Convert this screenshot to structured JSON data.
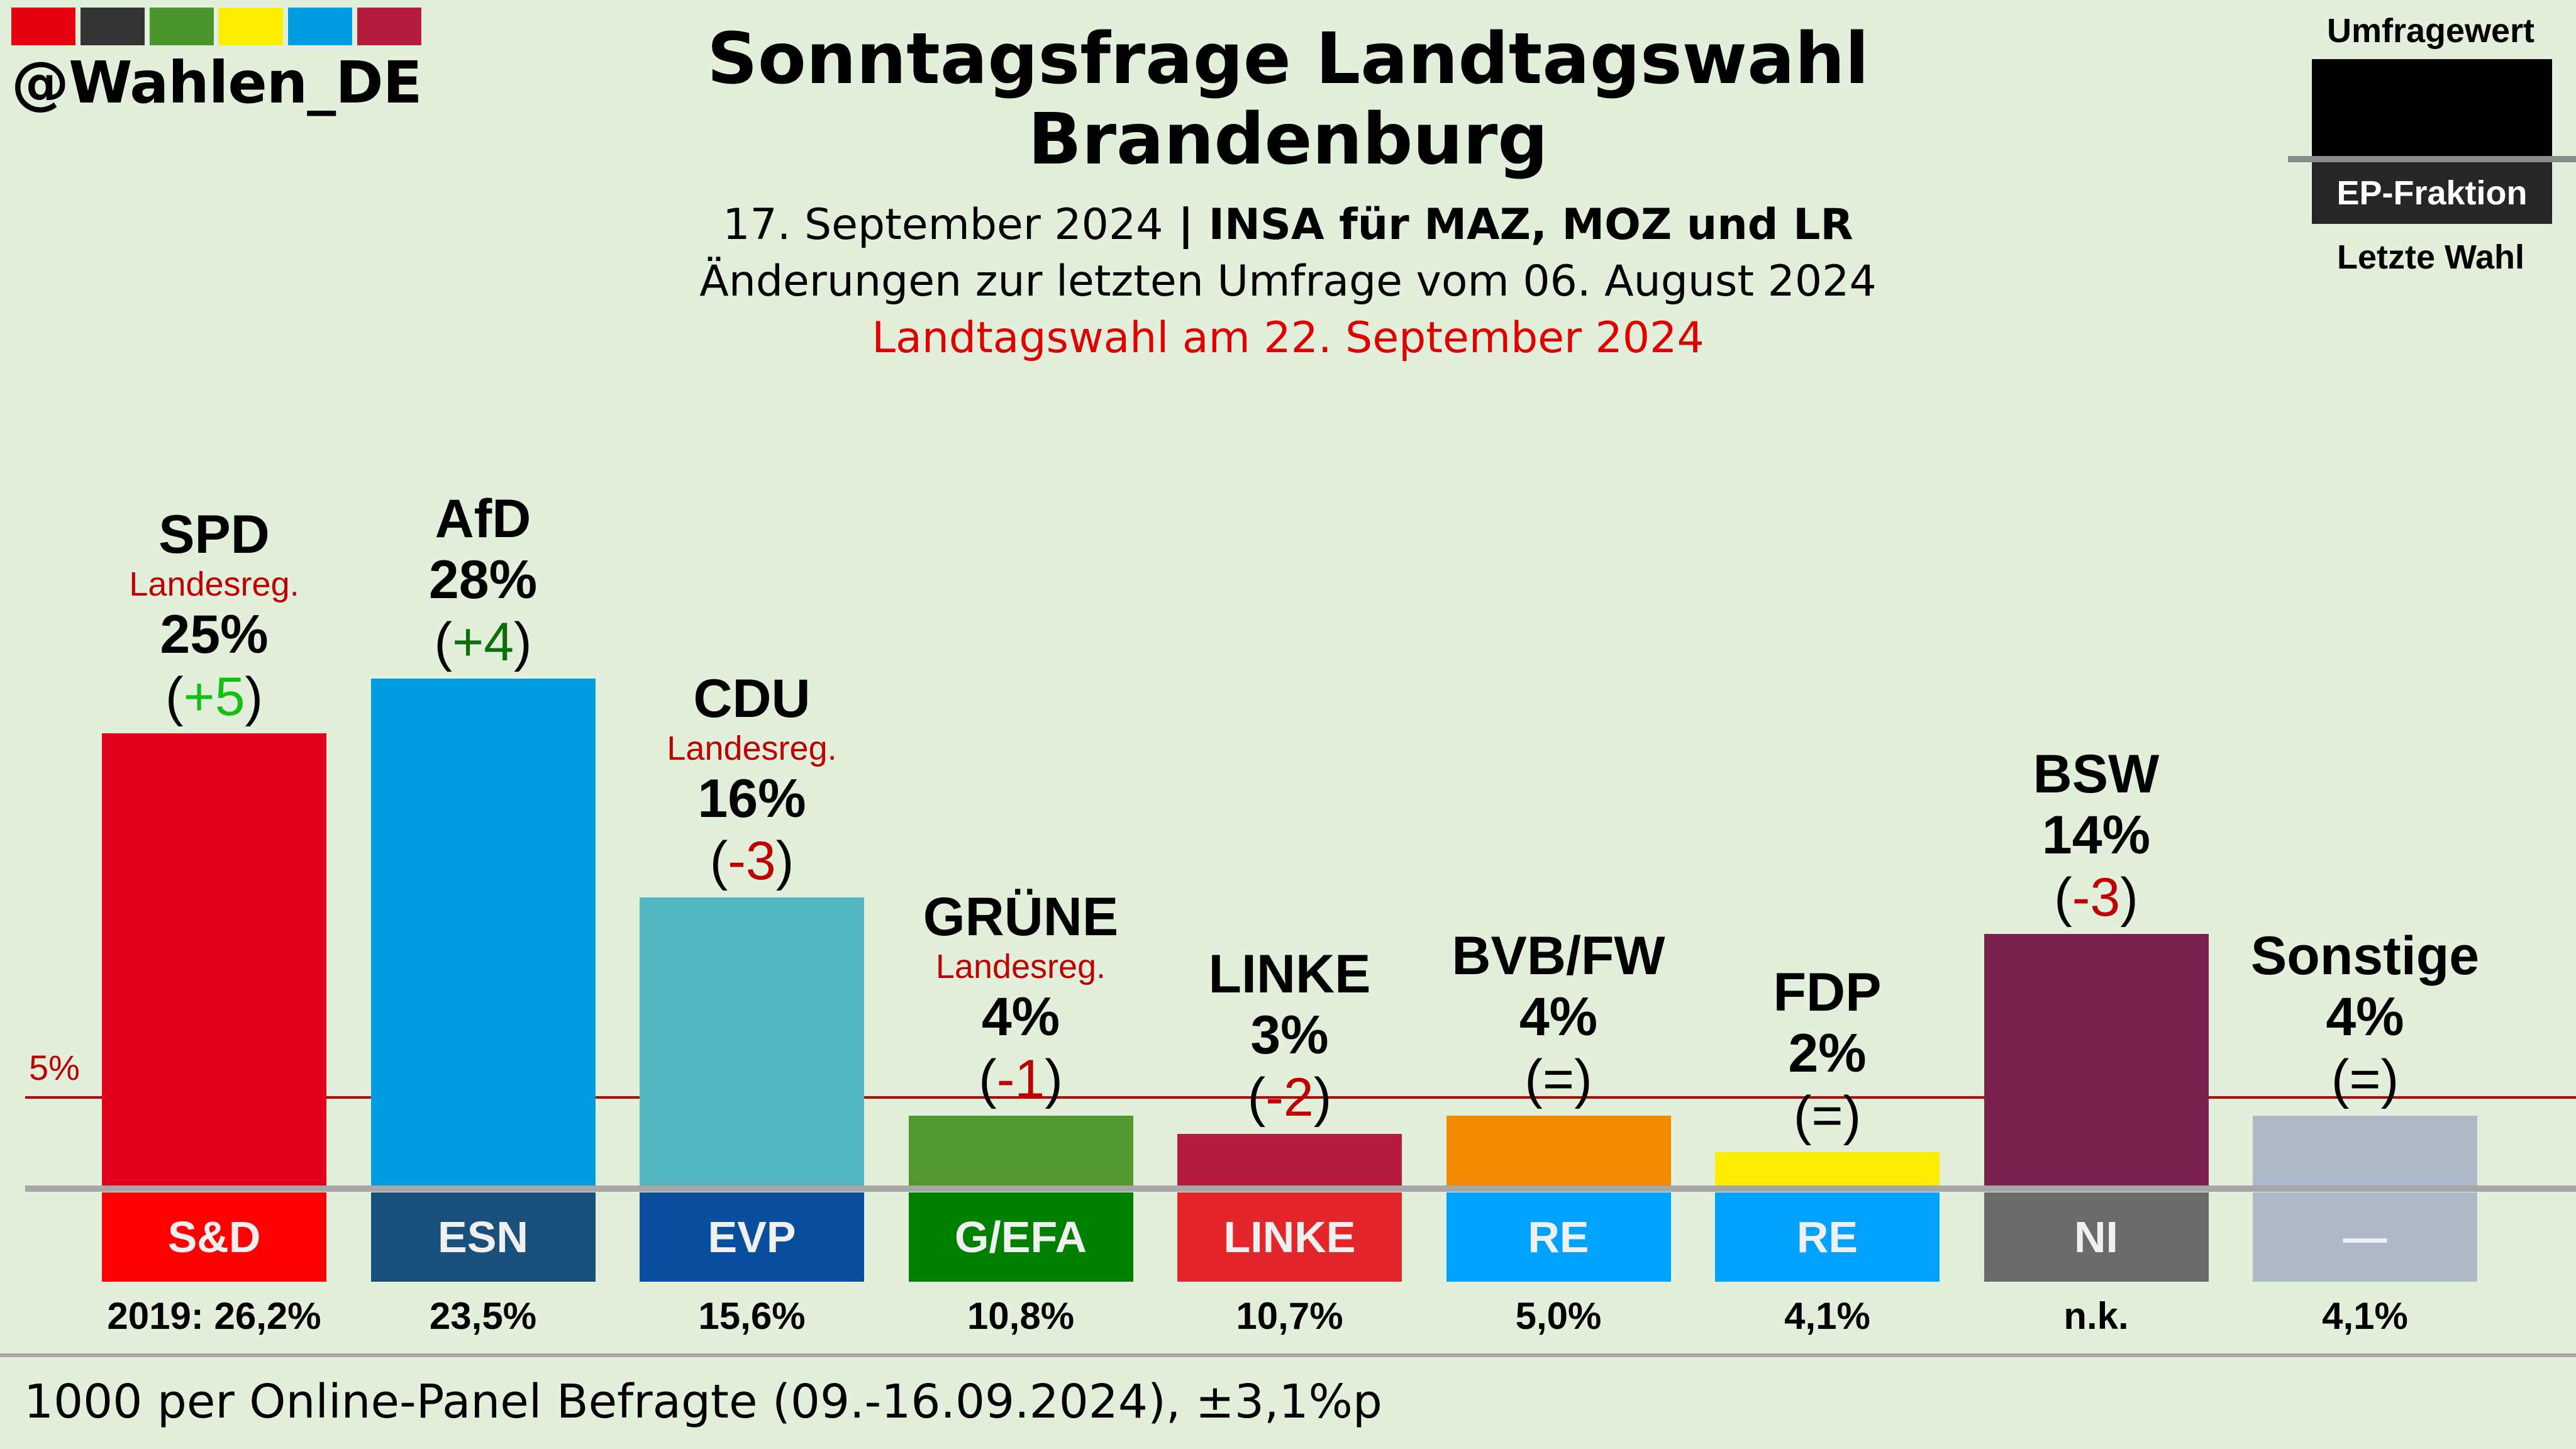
{
  "brand": {
    "handle": "@Wahlen_DE",
    "logo_colors": [
      "#e3000f",
      "#333333",
      "#4a962d",
      "#ffed00",
      "#009ee0",
      "#b41e3c"
    ]
  },
  "header": {
    "title_line1": "Sonntagsfrage Landtagswahl",
    "title_line2": "Brandenburg",
    "date": "17. September 2024",
    "separator": " | ",
    "institute": "INSA für MAZ, MOZ und LR",
    "changes_note": "Änderungen zur letzten Umfrage vom 06. August 2024",
    "election_note": "Landtagswahl am 22. September 2024"
  },
  "legend": {
    "top_label": "Umfragewert",
    "box_label": "EP-Fraktion",
    "bottom_label": "Letzte Wahl"
  },
  "footer": {
    "text": "1000 per Online-Panel Befragte (09.-16.09.2024), ±3,1%p"
  },
  "chart_data": {
    "type": "bar",
    "title": "Sonntagsfrage Landtagswahl Brandenburg",
    "ylabel": "",
    "xlabel": "",
    "ylim": [
      0,
      30
    ],
    "threshold": {
      "value": 5,
      "label": "5%"
    },
    "categories": [
      "SPD",
      "AfD",
      "CDU",
      "GRÜNE",
      "LINKE",
      "BVB/FW",
      "FDP",
      "BSW",
      "Sonstige"
    ],
    "values": [
      25,
      28,
      16,
      4,
      3,
      4,
      2,
      14,
      4
    ],
    "parties": [
      {
        "name": "SPD",
        "value": 25,
        "value_label": "25%",
        "government": "Landesreg.",
        "change": "+5",
        "change_color": "#11c011",
        "bar_color": "#e3001b",
        "ep_group": "S&D",
        "ep_color": "#ff0000",
        "last_election": "2019: 26,2%"
      },
      {
        "name": "AfD",
        "value": 28,
        "value_label": "28%",
        "government": "",
        "change": "+4",
        "change_color": "#0b6e0b",
        "bar_color": "#009ee0",
        "ep_group": "ESN",
        "ep_color": "#17507b",
        "last_election": "23,5%"
      },
      {
        "name": "CDU",
        "value": 16,
        "value_label": "16%",
        "government": "Landesreg.",
        "change": "-3",
        "change_color": "#c00000",
        "bar_color": "#52b6c3",
        "ep_group": "EVP",
        "ep_color": "#0a4f9f",
        "last_election": "15,6%"
      },
      {
        "name": "GRÜNE",
        "value": 4,
        "value_label": "4%",
        "government": "Landesreg.",
        "change": "-1",
        "change_color": "#c00000",
        "bar_color": "#53982e",
        "ep_group": "G/EFA",
        "ep_color": "#008000",
        "last_election": "10,8%"
      },
      {
        "name": "LINKE",
        "value": 3,
        "value_label": "3%",
        "government": "",
        "change": "-2",
        "change_color": "#c00000",
        "bar_color": "#b51c3e",
        "ep_group": "LINKE",
        "ep_color": "#e2262a",
        "last_election": "10,7%"
      },
      {
        "name": "BVB/FW",
        "value": 4,
        "value_label": "4%",
        "government": "",
        "change": "=",
        "change_color": "#000000",
        "bar_color": "#f28a00",
        "ep_group": "RE",
        "ep_color": "#00a2ff",
        "last_election": "5,0%"
      },
      {
        "name": "FDP",
        "value": 2,
        "value_label": "2%",
        "government": "",
        "change": "=",
        "change_color": "#000000",
        "bar_color": "#ffed00",
        "ep_group": "RE",
        "ep_color": "#00a2ff",
        "last_election": "4,1%"
      },
      {
        "name": "BSW",
        "value": 14,
        "value_label": "14%",
        "government": "",
        "change": "-3",
        "change_color": "#c00000",
        "bar_color": "#7a214d",
        "ep_group": "NI",
        "ep_color": "#6a6a6a",
        "last_election": "n.k."
      },
      {
        "name": "Sonstige",
        "value": 4,
        "value_label": "4%",
        "government": "",
        "change": "=",
        "change_color": "#000000",
        "bar_color": "#adb8c9",
        "ep_group": "—",
        "ep_color": "#adb8c9",
        "last_election": "4,1%"
      }
    ]
  }
}
